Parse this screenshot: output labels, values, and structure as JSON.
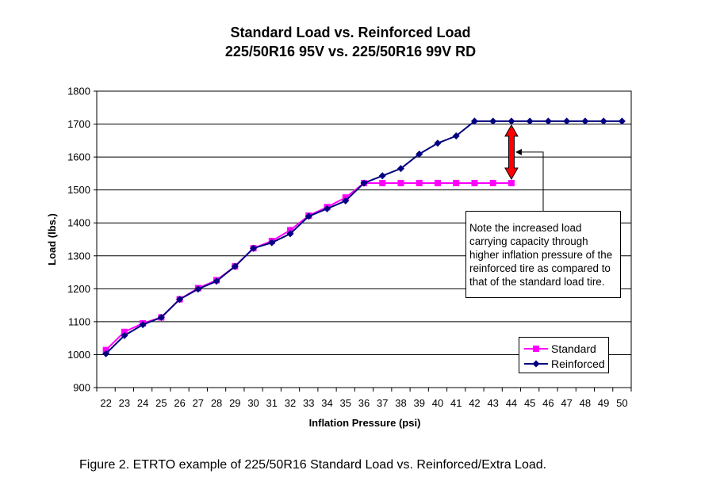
{
  "chart_data": {
    "type": "line",
    "title": "Standard Load vs. Reinforced Load",
    "subtitle": "225/50R16 95V vs. 225/50R16 99V RD",
    "xlabel": "Inflation Pressure (psi)",
    "ylabel": "Load (lbs.)",
    "x": [
      22,
      23,
      24,
      25,
      26,
      27,
      28,
      29,
      30,
      31,
      32,
      33,
      34,
      35,
      36,
      37,
      38,
      39,
      40,
      41,
      42,
      43,
      44,
      45,
      46,
      47,
      48,
      49,
      50
    ],
    "ylim": [
      900,
      1800
    ],
    "yticks": [
      900,
      1000,
      1100,
      1200,
      1300,
      1400,
      1500,
      1600,
      1700,
      1800
    ],
    "grid": "horizontal",
    "legend_position": "bottom-right",
    "series": [
      {
        "name": "Standard",
        "color": "#ff00ff",
        "marker": "square",
        "x": [
          22,
          23,
          24,
          25,
          26,
          27,
          28,
          29,
          30,
          31,
          32,
          33,
          34,
          35,
          36,
          37,
          38,
          39,
          40,
          41,
          42,
          43,
          44
        ],
        "values": [
          1014,
          1069,
          1095,
          1113,
          1168,
          1202,
          1226,
          1268,
          1323,
          1345,
          1378,
          1422,
          1448,
          1477,
          1521,
          1521,
          1521,
          1521,
          1521,
          1521,
          1521,
          1521,
          1521
        ]
      },
      {
        "name": "Reinforced",
        "color": "#000080",
        "marker": "diamond",
        "x": [
          22,
          23,
          24,
          25,
          26,
          27,
          28,
          29,
          30,
          31,
          32,
          33,
          34,
          35,
          36,
          37,
          38,
          39,
          40,
          41,
          42,
          43,
          44,
          45,
          46,
          47,
          48,
          49,
          50
        ],
        "values": [
          1003,
          1058,
          1091,
          1113,
          1168,
          1199,
          1223,
          1268,
          1323,
          1340,
          1367,
          1420,
          1443,
          1467,
          1521,
          1543,
          1565,
          1609,
          1642,
          1664,
          1709,
          1709,
          1709,
          1709,
          1709,
          1709,
          1709,
          1709,
          1709
        ]
      }
    ],
    "annotation": {
      "text": "Note the increased load carrying capacity through higher inflation pressure of the reinforced tire as compared to that of the standard load tire.",
      "arrow_at_x": 44,
      "arrow_from": 1521,
      "arrow_to": 1709,
      "arrow_color": "#ff0000"
    }
  },
  "caption": "Figure 2. ETRTO example of 225/50R16 Standard Load vs. Reinforced/Extra Load."
}
